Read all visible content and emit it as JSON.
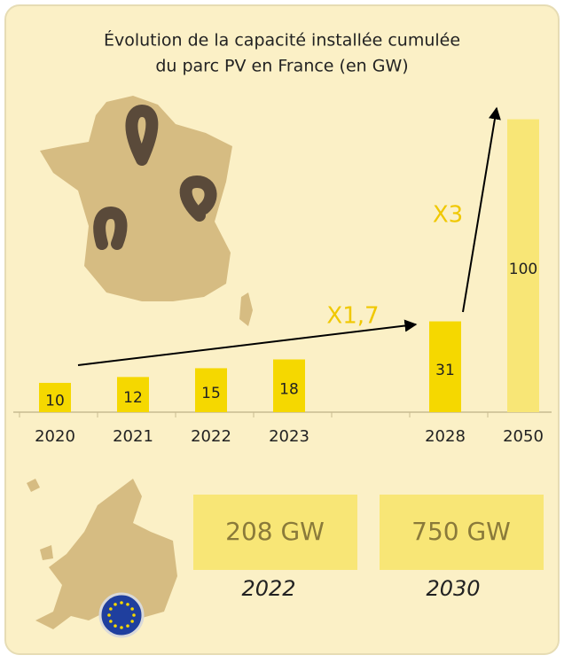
{
  "chart_data": {
    "type": "bar",
    "title_lines": [
      "Évolution de la capacité installée cumulée",
      "du parc PV en France (en GW)"
    ],
    "categories": [
      "2020",
      "2021",
      "2022",
      "2023",
      null,
      "2028",
      "2050"
    ],
    "values": [
      10,
      12,
      15,
      18,
      null,
      31,
      100
    ],
    "colors": [
      "#f5d800",
      "#f5d800",
      "#f5d800",
      "#f5d800",
      null,
      "#f5d800",
      "#f8e676"
    ],
    "ylim": [
      0,
      105
    ],
    "annotations": [
      "X1,7",
      "X3"
    ]
  },
  "europe": {
    "items": [
      {
        "value": "208 GW",
        "year": "2022"
      },
      {
        "value": "750 GW",
        "year": "2030"
      }
    ]
  }
}
